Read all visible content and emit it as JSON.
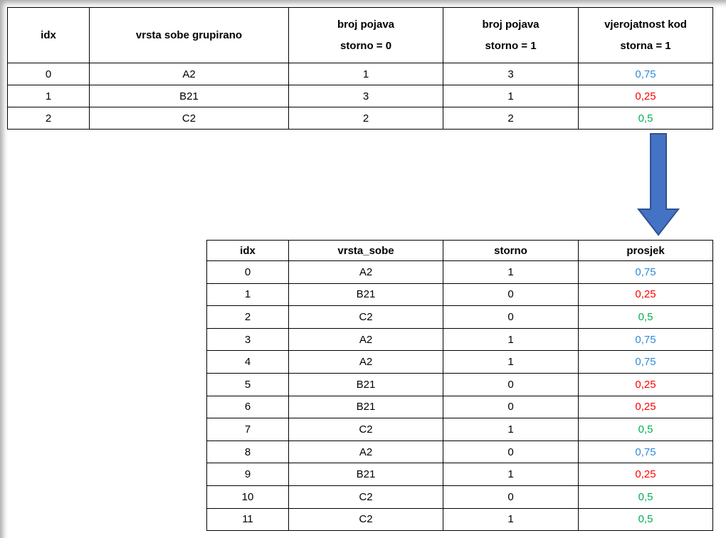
{
  "table_top": {
    "headers": [
      "idx",
      "vrsta sobe grupirano",
      "broj pojava\nstorno = 0",
      "broj pojava\nstorno = 1",
      "vjerojatnost kod\nstorna = 1"
    ],
    "rows": [
      [
        0,
        "A2",
        1,
        3,
        "0,75"
      ],
      [
        1,
        "B21",
        3,
        1,
        "0,25"
      ],
      [
        2,
        "C2",
        2,
        2,
        "0,5"
      ]
    ],
    "row_colors": [
      "#2e8ad8",
      "#ff0000",
      "#00b050"
    ]
  },
  "table_bottom": {
    "headers": [
      "idx",
      "vrsta_sobe",
      "storno",
      "prosjek"
    ],
    "rows": [
      [
        0,
        "A2",
        1,
        "0,75"
      ],
      [
        1,
        "B21",
        0,
        "0,25"
      ],
      [
        2,
        "C2",
        0,
        "0,5"
      ],
      [
        3,
        "A2",
        1,
        "0,75"
      ],
      [
        4,
        "A2",
        1,
        "0,75"
      ],
      [
        5,
        "B21",
        0,
        "0,25"
      ],
      [
        6,
        "B21",
        0,
        "0,25"
      ],
      [
        7,
        "C2",
        1,
        "0,5"
      ],
      [
        8,
        "A2",
        0,
        "0,75"
      ],
      [
        9,
        "B21",
        1,
        "0,25"
      ],
      [
        10,
        "C2",
        0,
        "0,5"
      ],
      [
        11,
        "C2",
        1,
        "0,5"
      ]
    ],
    "row_colors": [
      "#2e8ad8",
      "#ff0000",
      "#00b050",
      "#2e8ad8",
      "#2e8ad8",
      "#ff0000",
      "#ff0000",
      "#00b050",
      "#2e8ad8",
      "#ff0000",
      "#00b050",
      "#00b050"
    ]
  }
}
